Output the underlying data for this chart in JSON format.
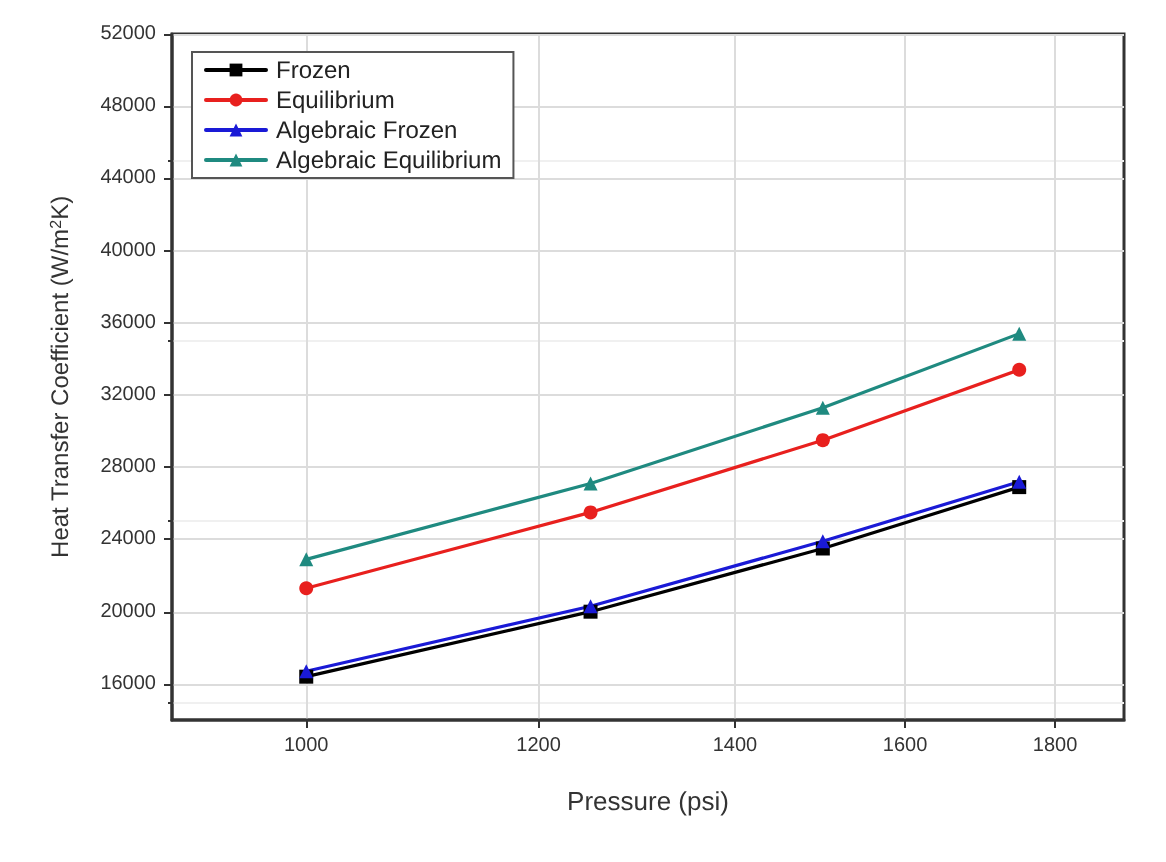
{
  "chart_data": {
    "type": "line",
    "xlabel": "Pressure (psi)",
    "ylabel": "Heat Transfer Coefficient (W/m$^{2}$K)",
    "x": [
      1000,
      1250,
      1500,
      1750
    ],
    "log": "x",
    "xlim": [
      900,
      1900
    ],
    "xticks": [
      1000,
      1200,
      1400,
      1600,
      1800
    ],
    "ylim": [
      14000,
      52000
    ],
    "yticks": [
      16000,
      20000,
      24000,
      28000,
      32000,
      36000,
      40000,
      44000,
      48000,
      52000
    ],
    "grid": true,
    "legend": "top left",
    "line_style": "solid",
    "series": [
      {
        "name": "Frozen",
        "color": "#000000",
        "marker": "square",
        "values": [
          16400,
          20000,
          23500,
          26900
        ]
      },
      {
        "name": "Equilibrium",
        "color": "#e8201e",
        "marker": "circle",
        "values": [
          21300,
          25500,
          29500,
          33400
        ]
      },
      {
        "name": "Algebraic Frozen",
        "color": "#1a1ad6",
        "marker": "triangle",
        "values": [
          16700,
          20300,
          23900,
          27200
        ]
      },
      {
        "name": "Algebraic Equilibrium",
        "color": "#1f8a80",
        "marker": "triangle",
        "values": [
          22900,
          27100,
          31300,
          35400
        ]
      }
    ]
  }
}
